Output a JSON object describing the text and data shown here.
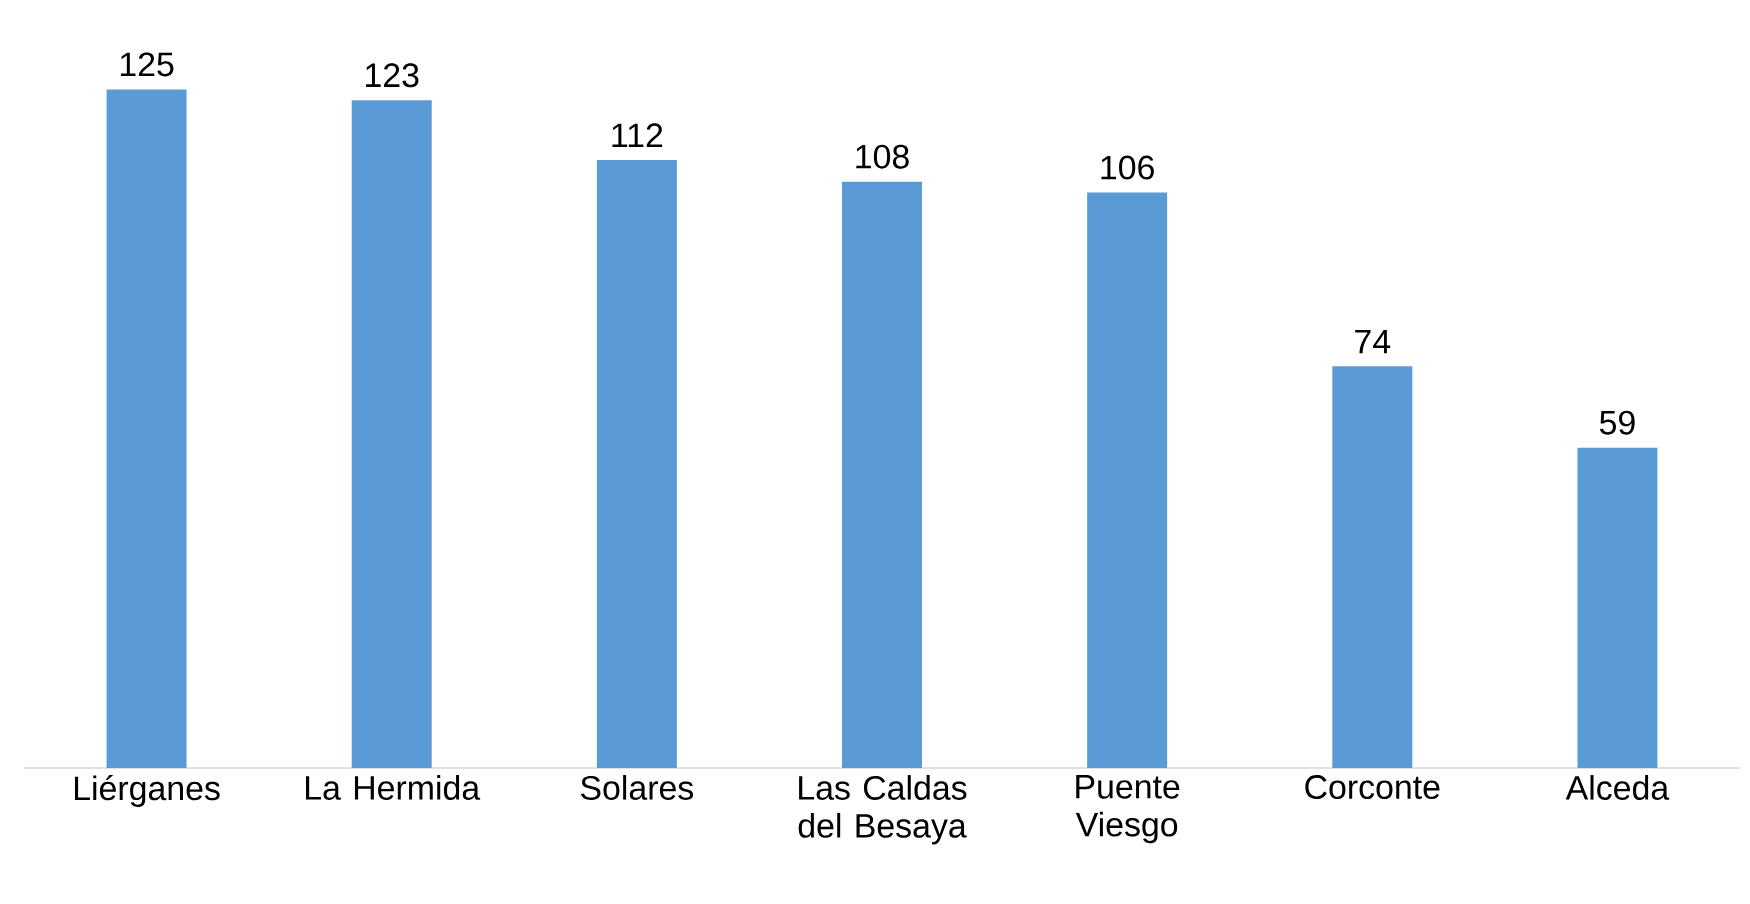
{
  "chart_data": {
    "type": "bar",
    "categories": [
      "Liérganes",
      "La Hermida",
      "Solares",
      "Las Caldas del Besaya",
      "Puente Viesgo",
      "Corconte",
      "Alceda"
    ],
    "values": [
      125,
      123,
      112,
      108,
      106,
      74,
      59
    ],
    "color": "#5b9bd5",
    "data_labels": true
  }
}
